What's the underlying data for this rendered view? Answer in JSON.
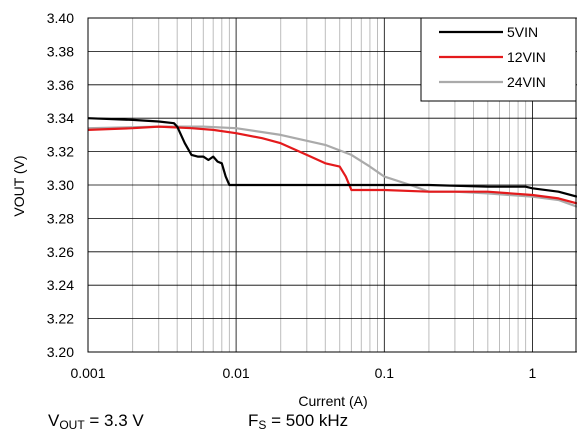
{
  "chart_data": {
    "type": "line",
    "xlabel": "Current (A)",
    "ylabel": "VOUT (V)",
    "xscale": "log",
    "xlim": [
      0.001,
      2
    ],
    "ylim": [
      3.2,
      3.4
    ],
    "x_ticks": [
      {
        "value": 0.001,
        "label": "0.001"
      },
      {
        "value": 0.01,
        "label": "0.01"
      },
      {
        "value": 0.1,
        "label": "0.1"
      },
      {
        "value": 1,
        "label": "1"
      }
    ],
    "y_ticks": [
      {
        "value": 3.2,
        "label": "3.20"
      },
      {
        "value": 3.22,
        "label": "3.22"
      },
      {
        "value": 3.24,
        "label": "3.24"
      },
      {
        "value": 3.26,
        "label": "3.26"
      },
      {
        "value": 3.28,
        "label": "3.28"
      },
      {
        "value": 3.3,
        "label": "3.30"
      },
      {
        "value": 3.32,
        "label": "3.32"
      },
      {
        "value": 3.34,
        "label": "3.34"
      },
      {
        "value": 3.36,
        "label": "3.36"
      },
      {
        "value": 3.38,
        "label": "3.38"
      },
      {
        "value": 3.4,
        "label": "3.40"
      }
    ],
    "grid": true,
    "legend_position": "top-right",
    "series": [
      {
        "name": "5VIN",
        "color": "#000000",
        "points": [
          [
            0.001,
            3.34
          ],
          [
            0.002,
            3.339
          ],
          [
            0.003,
            3.338
          ],
          [
            0.0038,
            3.337
          ],
          [
            0.004,
            3.335
          ],
          [
            0.0045,
            3.325
          ],
          [
            0.005,
            3.318
          ],
          [
            0.0055,
            3.317
          ],
          [
            0.006,
            3.317
          ],
          [
            0.0065,
            3.315
          ],
          [
            0.007,
            3.317
          ],
          [
            0.0075,
            3.314
          ],
          [
            0.008,
            3.313
          ],
          [
            0.0085,
            3.305
          ],
          [
            0.009,
            3.3
          ],
          [
            0.01,
            3.3
          ],
          [
            0.05,
            3.3
          ],
          [
            0.2,
            3.3
          ],
          [
            0.5,
            3.299
          ],
          [
            0.9,
            3.299
          ],
          [
            1.0,
            3.298
          ],
          [
            1.5,
            3.296
          ],
          [
            2.0,
            3.293
          ]
        ]
      },
      {
        "name": "12VIN",
        "color": "#e41a1c",
        "points": [
          [
            0.001,
            3.333
          ],
          [
            0.002,
            3.334
          ],
          [
            0.003,
            3.335
          ],
          [
            0.005,
            3.334
          ],
          [
            0.007,
            3.333
          ],
          [
            0.01,
            3.331
          ],
          [
            0.015,
            3.328
          ],
          [
            0.02,
            3.325
          ],
          [
            0.03,
            3.318
          ],
          [
            0.04,
            3.313
          ],
          [
            0.05,
            3.311
          ],
          [
            0.055,
            3.305
          ],
          [
            0.06,
            3.297
          ],
          [
            0.07,
            3.297
          ],
          [
            0.1,
            3.297
          ],
          [
            0.2,
            3.296
          ],
          [
            0.5,
            3.296
          ],
          [
            1.0,
            3.294
          ],
          [
            1.5,
            3.292
          ],
          [
            2.0,
            3.289
          ]
        ]
      },
      {
        "name": "24VIN",
        "color": "#aaaaaa",
        "points": [
          [
            0.001,
            3.334
          ],
          [
            0.003,
            3.335
          ],
          [
            0.006,
            3.335
          ],
          [
            0.01,
            3.334
          ],
          [
            0.02,
            3.33
          ],
          [
            0.04,
            3.324
          ],
          [
            0.06,
            3.318
          ],
          [
            0.08,
            3.311
          ],
          [
            0.1,
            3.305
          ],
          [
            0.15,
            3.3
          ],
          [
            0.2,
            3.296
          ],
          [
            0.3,
            3.296
          ],
          [
            0.5,
            3.295
          ],
          [
            1.0,
            3.293
          ],
          [
            1.5,
            3.291
          ],
          [
            2.0,
            3.287
          ]
        ]
      }
    ]
  },
  "conditions": {
    "vout": {
      "main": "V",
      "sub": "OUT",
      "rest": " = 3.3 V"
    },
    "fs": {
      "main": "F",
      "sub": "S",
      "rest": " = 500 kHz"
    }
  }
}
